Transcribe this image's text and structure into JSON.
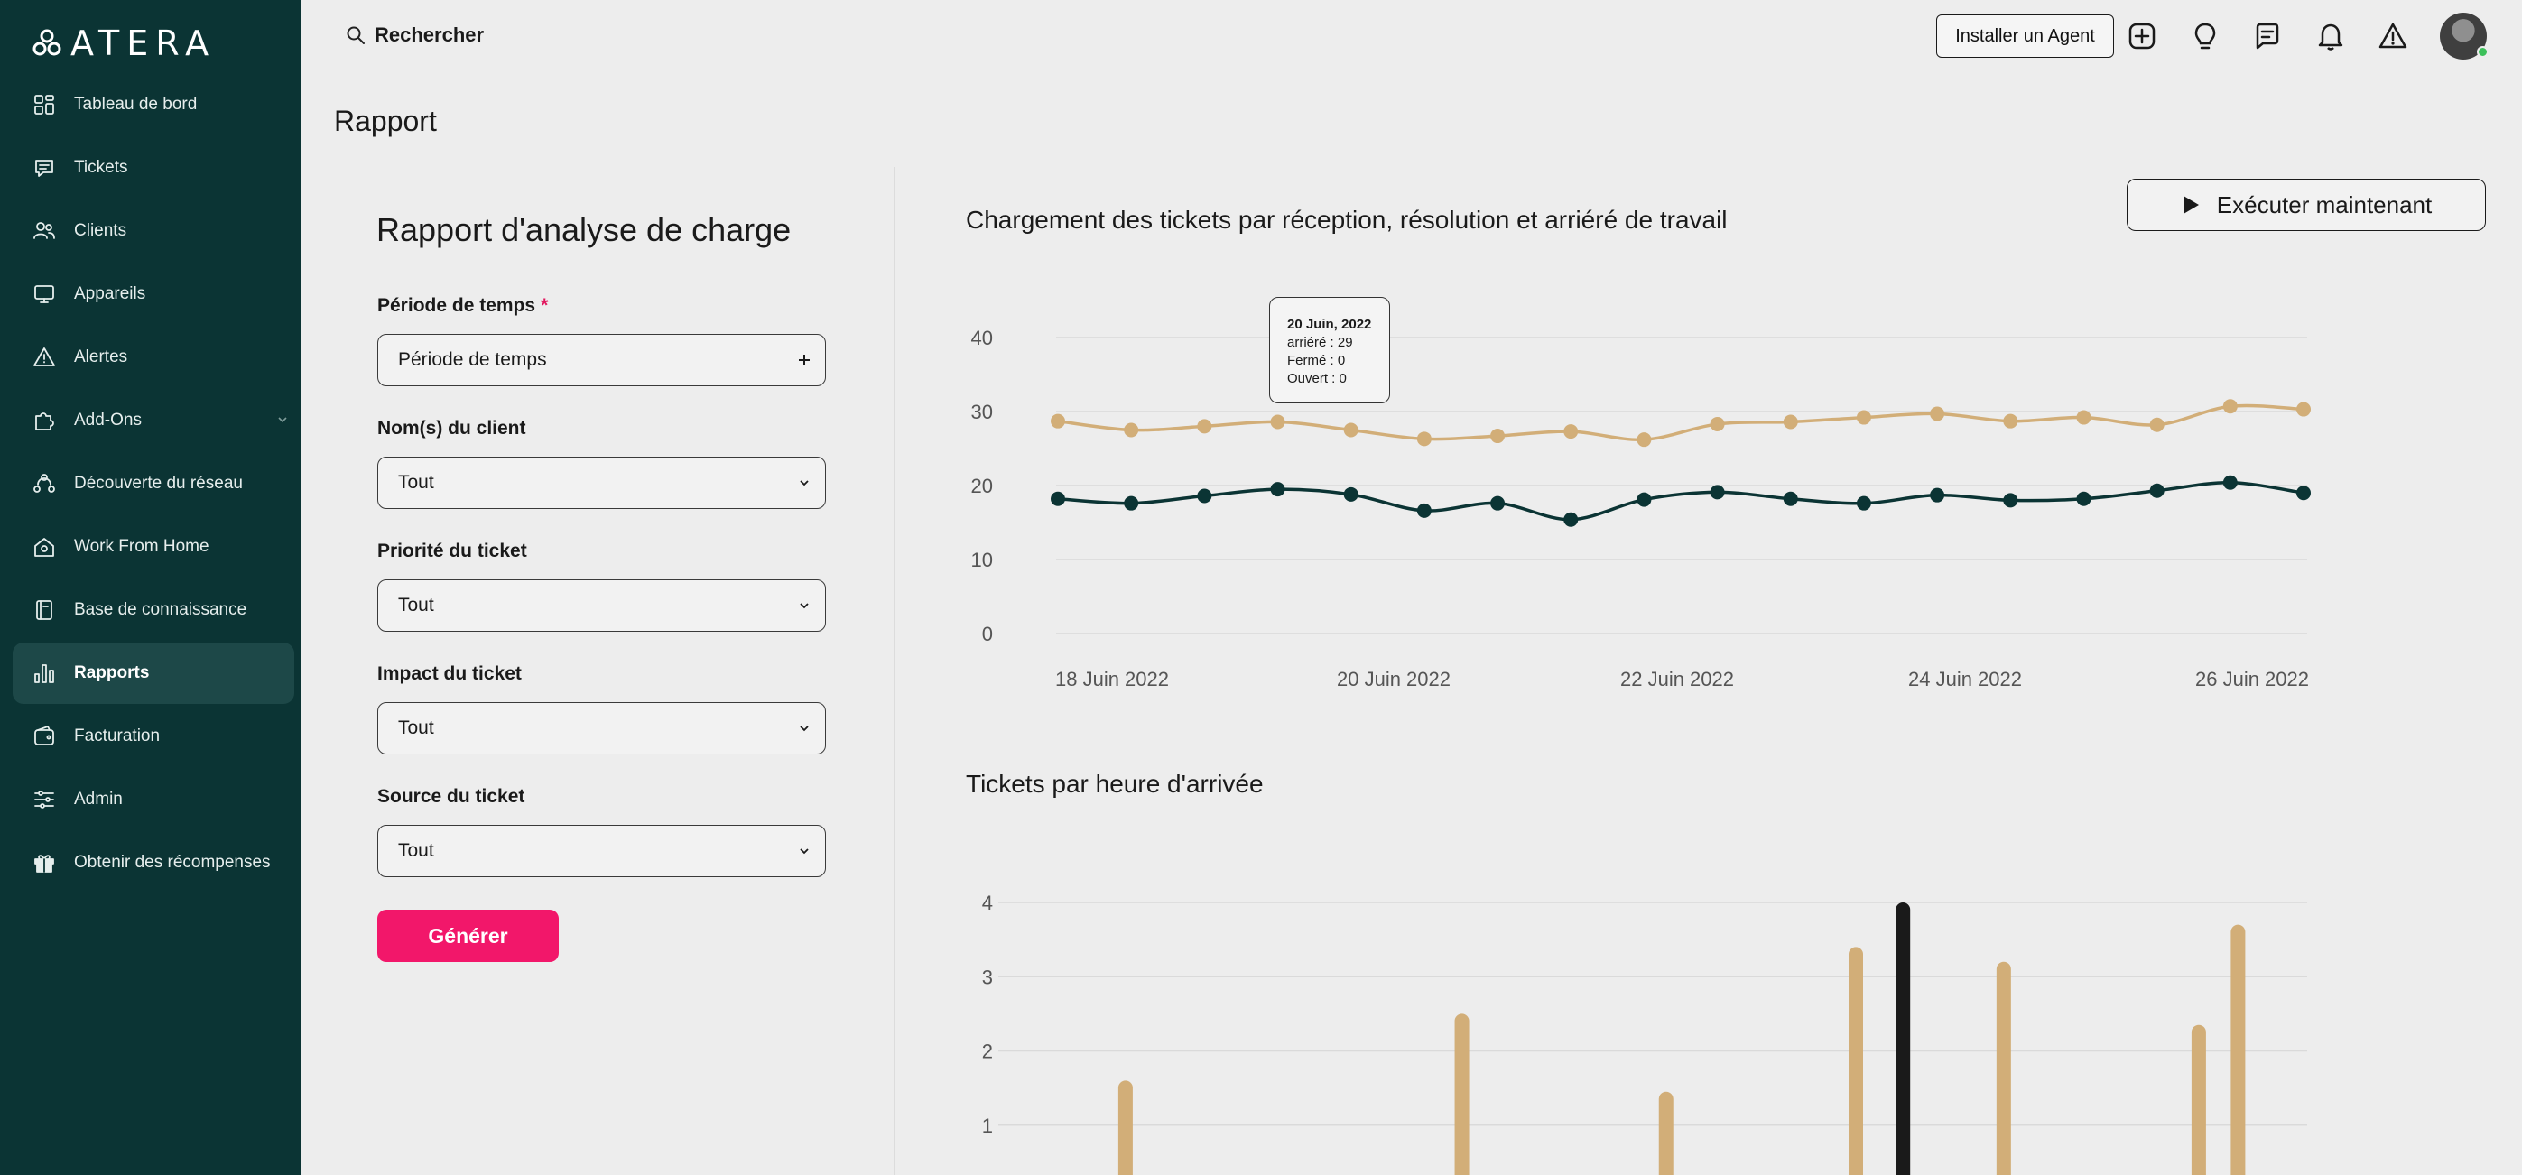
{
  "app": {
    "logo_text": "ATERA"
  },
  "sidebar": {
    "items": [
      {
        "label": "Tableau de bord",
        "icon": "dashboard-icon"
      },
      {
        "label": "Tickets",
        "icon": "ticket-icon"
      },
      {
        "label": "Clients",
        "icon": "users-icon"
      },
      {
        "label": "Appareils",
        "icon": "monitor-icon"
      },
      {
        "label": "Alertes",
        "icon": "alert-triangle-icon"
      },
      {
        "label": "Add-Ons",
        "icon": "puzzle-icon"
      },
      {
        "label": "Découverte du réseau",
        "icon": "network-icon"
      },
      {
        "label": "Work From Home",
        "icon": "home-icon"
      },
      {
        "label": "Base de connaissance",
        "icon": "book-icon"
      },
      {
        "label": "Rapports",
        "icon": "bar-chart-icon",
        "active": true
      },
      {
        "label": "Facturation",
        "icon": "wallet-icon"
      },
      {
        "label": "Admin",
        "icon": "sliders-icon"
      },
      {
        "label": "Obtenir des récompenses",
        "icon": "gift-icon"
      }
    ]
  },
  "topbar": {
    "search_label": "Rechercher",
    "install_agent_label": "Installer un Agent",
    "icons": [
      "plus-square-icon",
      "lightbulb-icon",
      "chat-icon",
      "bell-icon",
      "warning-icon"
    ]
  },
  "page": {
    "title": "Rapport"
  },
  "form": {
    "title": "Rapport d'analyse de charge",
    "fields": [
      {
        "label": "Période de temps",
        "required": true,
        "value": "Période de temps",
        "type": "picker"
      },
      {
        "label": "Nom(s) du client",
        "value": "Tout",
        "type": "select"
      },
      {
        "label": "Priorité du ticket",
        "value": "Tout",
        "type": "select"
      },
      {
        "label": "Impact du ticket",
        "value": "Tout",
        "type": "select"
      },
      {
        "label": "Source du ticket",
        "value": "Tout",
        "type": "select"
      }
    ],
    "required_mark": "*",
    "generate_label": "Générer"
  },
  "run_now_label": "Exécuter maintenant",
  "tooltip": {
    "date": "20 Juin, 2022",
    "lines": [
      "arriéré : 29",
      "Fermé : 0",
      "Ouvert : 0"
    ]
  },
  "colors": {
    "sidebar": "#0b3434",
    "accent": "#f2176a",
    "tan": "#d2ae78",
    "dark": "#0b3434",
    "highlight": "#1a1a1a"
  },
  "chart_data": [
    {
      "type": "line",
      "title": "Chargement des tickets par réception, résolution et arriéré de travail",
      "ylim": [
        0,
        40
      ],
      "yticks": [
        0,
        10,
        20,
        30,
        40
      ],
      "xtick_labels": [
        "18 Juin 2022",
        "20 Juin 2022",
        "22 Juin 2022",
        "24 Juin 2022",
        "26 Juin 2022"
      ],
      "grid": true,
      "series": [
        {
          "color": "#d2ae78",
          "values": [
            28.7,
            27.5,
            28.0,
            28.6,
            27.5,
            26.3,
            26.7,
            27.3,
            26.2,
            28.3,
            28.6,
            29.2,
            29.7,
            28.7,
            29.2,
            28.2,
            30.7,
            30.3
          ]
        },
        {
          "color": "#0b3434",
          "values": [
            18.2,
            17.6,
            18.6,
            19.5,
            18.8,
            16.6,
            17.6,
            15.4,
            18.1,
            19.1,
            18.2,
            17.6,
            18.7,
            18.0,
            18.2,
            19.3,
            20.4,
            19.0
          ]
        }
      ]
    },
    {
      "type": "bar",
      "title": "Tickets par heure d'arrivée",
      "ylim": [
        0,
        4
      ],
      "yticks": [
        1,
        2,
        3,
        4
      ],
      "grid": true,
      "bars": [
        {
          "position": 0.062,
          "value": 1.6,
          "color": "#d2ae78"
        },
        {
          "position": 0.319,
          "value": 2.5,
          "color": "#d2ae78"
        },
        {
          "position": 0.475,
          "value": 1.45,
          "color": "#d2ae78"
        },
        {
          "position": 0.62,
          "value": 3.4,
          "color": "#d2ae78"
        },
        {
          "position": 0.656,
          "value": 4.0,
          "color": "#1a1a1a"
        },
        {
          "position": 0.733,
          "value": 3.2,
          "color": "#d2ae78"
        },
        {
          "position": 0.882,
          "value": 2.35,
          "color": "#d2ae78"
        },
        {
          "position": 0.912,
          "value": 3.7,
          "color": "#d2ae78"
        }
      ]
    }
  ]
}
